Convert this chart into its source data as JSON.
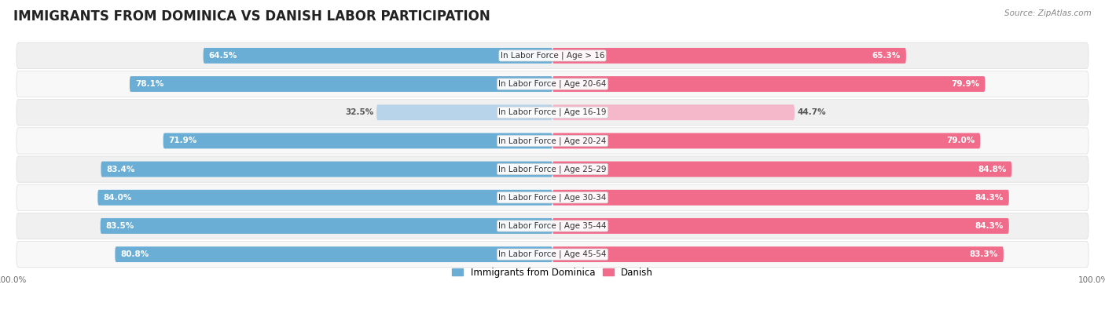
{
  "title": "IMMIGRANTS FROM DOMINICA VS DANISH LABOR PARTICIPATION",
  "source": "Source: ZipAtlas.com",
  "categories": [
    "In Labor Force | Age > 16",
    "In Labor Force | Age 20-64",
    "In Labor Force | Age 16-19",
    "In Labor Force | Age 20-24",
    "In Labor Force | Age 25-29",
    "In Labor Force | Age 30-34",
    "In Labor Force | Age 35-44",
    "In Labor Force | Age 45-54"
  ],
  "dominica_values": [
    64.5,
    78.1,
    32.5,
    71.9,
    83.4,
    84.0,
    83.5,
    80.8
  ],
  "danish_values": [
    65.3,
    79.9,
    44.7,
    79.0,
    84.8,
    84.3,
    84.3,
    83.3
  ],
  "dominica_color": "#6AAED6",
  "dominica_color_light": "#B8D4EA",
  "danish_color": "#F06C8A",
  "danish_color_light": "#F5B8CA",
  "row_bg_even": "#f2f2f2",
  "row_bg_odd": "#fafafa",
  "title_color": "#333333",
  "source_color": "#888888",
  "label_color": "#444444",
  "value_color_white": "#ffffff",
  "value_color_dark": "#555555",
  "max_value": 100.0,
  "bar_height": 0.55,
  "title_fontsize": 12,
  "label_fontsize": 7.5,
  "value_fontsize": 7.5,
  "legend_fontsize": 8.5,
  "axis_label_fontsize": 7.5
}
